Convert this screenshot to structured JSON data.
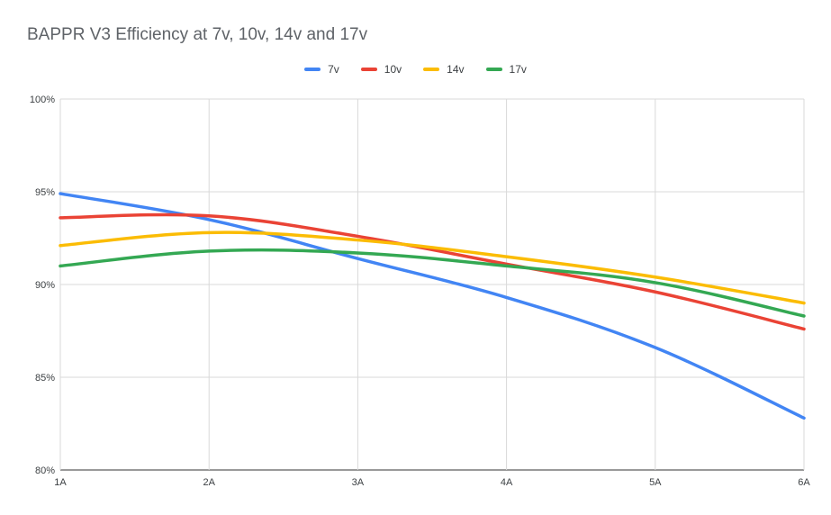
{
  "chart_data": {
    "type": "line",
    "title": "BAPPR V3 Efficiency at 7v, 10v, 14v and 17v",
    "xlabel": "",
    "ylabel": "",
    "categories": [
      "1A",
      "2A",
      "3A",
      "4A",
      "5A",
      "6A"
    ],
    "ylim": [
      80,
      100
    ],
    "yticks": [
      "80%",
      "85%",
      "90%",
      "95%",
      "100%"
    ],
    "grid": true,
    "legend_position": "top",
    "series": [
      {
        "name": "7v",
        "color": "#4285f4",
        "values": [
          94.9,
          93.5,
          91.4,
          89.3,
          86.6,
          82.8
        ]
      },
      {
        "name": "10v",
        "color": "#ea4335",
        "values": [
          93.6,
          93.7,
          92.6,
          91.1,
          89.6,
          87.6
        ]
      },
      {
        "name": "14v",
        "color": "#fbbc04",
        "values": [
          92.1,
          92.8,
          92.4,
          91.5,
          90.4,
          89.0
        ]
      },
      {
        "name": "17v",
        "color": "#34a853",
        "values": [
          91.0,
          91.8,
          91.7,
          91.0,
          90.1,
          88.3
        ]
      }
    ]
  }
}
